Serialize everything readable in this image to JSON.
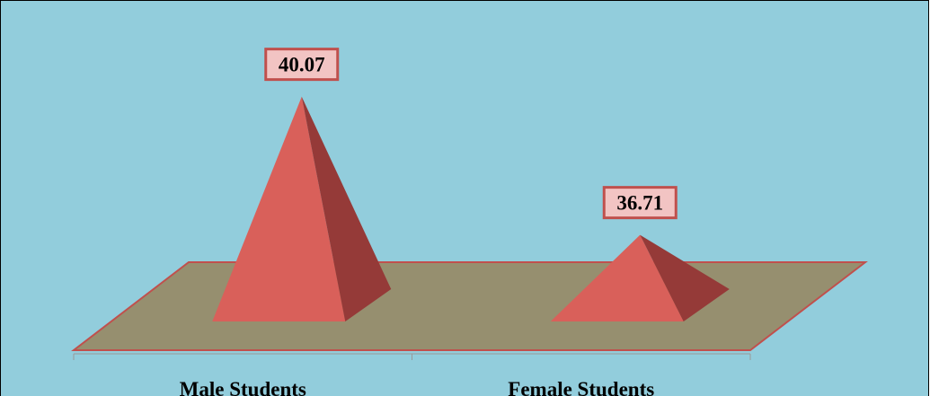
{
  "chart_data": {
    "type": "pyramid",
    "categories": [
      "Male Students",
      "Female Students"
    ],
    "values": [
      40.07,
      36.71
    ],
    "color": "#d9605a",
    "side_color": "#953a38",
    "ylim": [
      35,
      41
    ]
  }
}
